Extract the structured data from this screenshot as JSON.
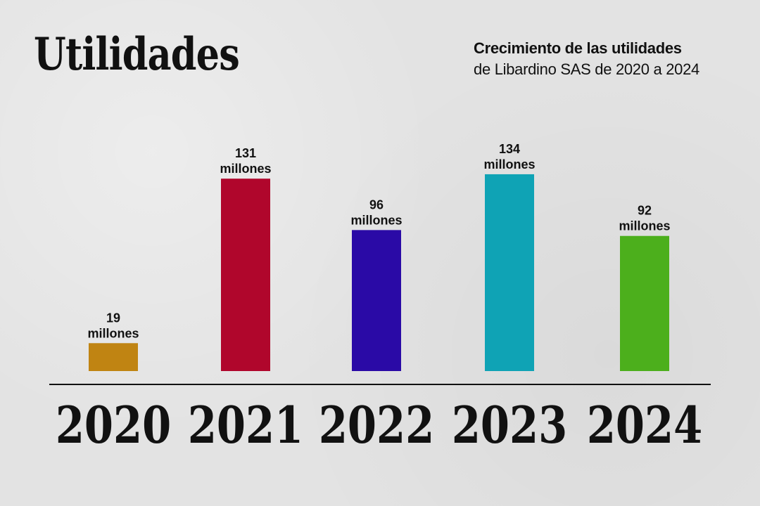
{
  "title": "Utilidades",
  "subtitle": {
    "line1": "Crecimiento de las utilidades",
    "line2": "de Libardino SAS de 2020 a 2024"
  },
  "chart_data": {
    "type": "bar",
    "categories": [
      "2020",
      "2021",
      "2022",
      "2023",
      "2024"
    ],
    "values": [
      19,
      131,
      96,
      134,
      92
    ],
    "value_unit": "millones",
    "colors": [
      "#c08412",
      "#b0062c",
      "#2a0aa6",
      "#0fa3b5",
      "#4caf1c"
    ],
    "title": "",
    "xlabel": "",
    "ylabel": "",
    "ylim": [
      0,
      140
    ],
    "grid": false,
    "legend": "none"
  }
}
